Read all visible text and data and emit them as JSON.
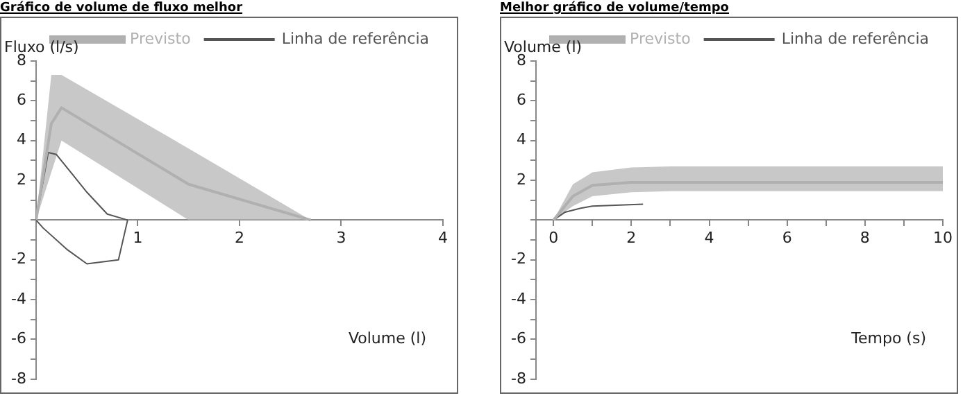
{
  "chart_data": [
    {
      "type": "line",
      "title": "Gráfico de volume de fluxo melhor",
      "xlabel": "Volume (l)",
      "ylabel": "Fluxo (l/s)",
      "legend": "top right",
      "xlim": [
        0,
        4
      ],
      "xticks": [
        {
          "value": 0,
          "label": null
        },
        1,
        2,
        3,
        4
      ],
      "ylim": [
        -8,
        8
      ],
      "yticks": [
        -8,
        {
          "value": -7,
          "label": null
        },
        -6,
        {
          "value": -5,
          "label": null
        },
        -4,
        {
          "value": -3,
          "label": null
        },
        -2,
        {
          "value": -1,
          "label": null
        },
        {
          "value": 0,
          "label": null
        },
        {
          "value": 1,
          "label": null
        },
        2,
        {
          "value": 3,
          "label": null
        },
        4,
        {
          "value": 5,
          "label": null
        },
        6,
        {
          "value": 7,
          "label": null
        },
        8
      ],
      "series": [
        {
          "name": "Previsto",
          "type": "line",
          "color": "#b0b0b0",
          "x": [
            0,
            0.15,
            0.25,
            1.5,
            2.7
          ],
          "values": [
            0,
            4.85,
            5.65,
            1.8,
            0
          ],
          "upper": [
            0,
            7.3,
            7.3,
            3.6,
            0
          ],
          "lower": [
            0,
            2.4,
            4,
            0,
            0
          ]
        },
        {
          "name": "Linha de referência",
          "type": "line",
          "color": "#555555",
          "x": [
            0,
            0.12,
            0.2,
            0.5,
            0.7,
            0.9
          ],
          "values": [
            0,
            3.4,
            3.3,
            1.4,
            0.3,
            0
          ]
        },
        {
          "type": "line",
          "color": "#555555",
          "x": [
            0,
            0.07,
            0.31,
            0.5,
            0.81,
            0.9
          ],
          "values": [
            0,
            -0.4,
            -1.5,
            -2.2,
            -2,
            0
          ]
        }
      ]
    },
    {
      "type": "line",
      "title": "Melhor gráfico de volume/tempo",
      "xlabel": "Tempo (s)",
      "ylabel": "Volume (l)",
      "legend": "top right",
      "xlim": [
        -0.45,
        10
      ],
      "xticks": [
        0,
        {
          "value": 1,
          "label": null
        },
        2,
        {
          "value": 3,
          "label": null
        },
        4,
        {
          "value": 5,
          "label": null
        },
        6,
        {
          "value": 7,
          "label": null
        },
        8,
        {
          "value": 9,
          "label": null
        },
        10
      ],
      "ylim": [
        -8,
        8
      ],
      "yticks": [
        -8,
        {
          "value": -7,
          "label": null
        },
        -6,
        {
          "value": -5,
          "label": null
        },
        -4,
        {
          "value": -3,
          "label": null
        },
        -2,
        {
          "value": -1,
          "label": null
        },
        {
          "value": 0,
          "label": null
        },
        {
          "value": 1,
          "label": null
        },
        2,
        {
          "value": 3,
          "label": null
        },
        4,
        {
          "value": 5,
          "label": null
        },
        6,
        {
          "value": 7,
          "label": null
        },
        8
      ],
      "series": [
        {
          "name": "Previsto",
          "type": "line",
          "color": "#b0b0b0",
          "x": [
            0,
            0.5,
            1,
            2,
            3,
            10
          ],
          "values": [
            0,
            1.2,
            1.75,
            1.9,
            1.9,
            1.9
          ],
          "upper": [
            0,
            1.8,
            2.4,
            2.65,
            2.7,
            2.7
          ],
          "lower": [
            0,
            0.7,
            1.2,
            1.4,
            1.45,
            1.45
          ]
        },
        {
          "name": "Linha de referência",
          "type": "line",
          "color": "#555555",
          "x": [
            0,
            0.3,
            0.7,
            1,
            2.3
          ],
          "values": [
            0,
            0.4,
            0.6,
            0.7,
            0.8
          ]
        }
      ]
    }
  ]
}
